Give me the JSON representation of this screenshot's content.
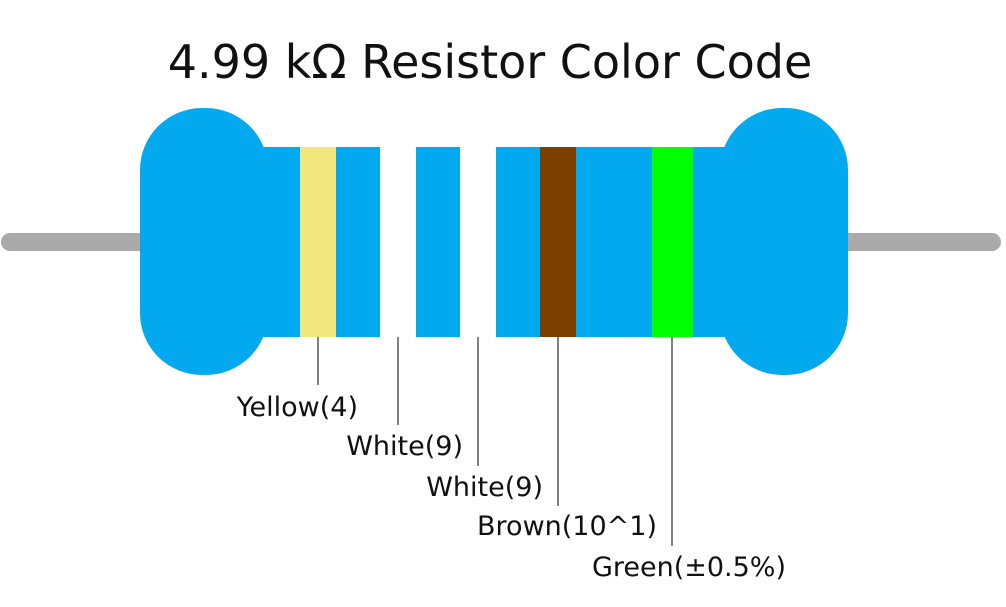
{
  "title": "4.99 kΩ Resistor Color Code",
  "bands": [
    {
      "label": "Yellow(4)"
    },
    {
      "label": "White(9)"
    },
    {
      "label": "White(9)"
    },
    {
      "label": "Brown(10^1)"
    },
    {
      "label": "Green(±0.5%)"
    }
  ]
}
